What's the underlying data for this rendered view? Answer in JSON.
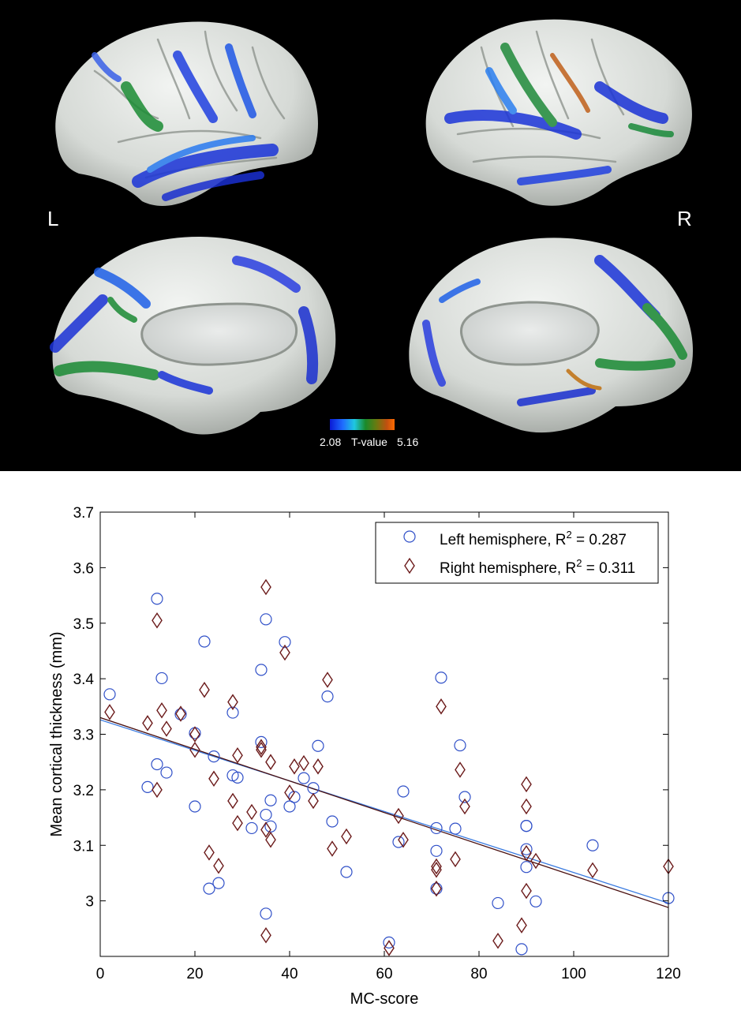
{
  "brain": {
    "left_label": "L",
    "right_label": "R",
    "colorbar": {
      "min_label": "2.08",
      "title": "T-value",
      "max_label": "5.16",
      "colors": [
        "#0a1ad6",
        "#1f6cff",
        "#1fc8e0",
        "#1a8a2a",
        "#6a7a10",
        "#c05010",
        "#ff6a00"
      ]
    }
  },
  "chart_data": {
    "type": "scatter",
    "xlabel": "MC-score",
    "ylabel": "Mean cortical thickness (mm)",
    "xlim": [
      0,
      120
    ],
    "ylim": [
      2.9,
      3.7
    ],
    "xticks": [
      "0",
      "20",
      "40",
      "60",
      "80",
      "100",
      "120"
    ],
    "yticks": [
      "3",
      "3.1",
      "3.2",
      "3.3",
      "3.4",
      "3.5",
      "3.6",
      "3.7"
    ],
    "ytick_values": [
      3.0,
      3.1,
      3.2,
      3.3,
      3.4,
      3.5,
      3.6,
      3.7
    ],
    "legend_position": "top-right",
    "series": [
      {
        "name": "Left hemisphere, R",
        "r2_text": " = 0.287",
        "marker": "circle",
        "color": "#3050c8",
        "fit_color": "#3a7be0",
        "fit": [
          [
            0,
            3.326
          ],
          [
            120,
            2.996
          ]
        ],
        "points": [
          [
            2,
            3.372
          ],
          [
            10,
            3.205
          ],
          [
            12,
            3.544
          ],
          [
            12,
            3.246
          ],
          [
            13,
            3.401
          ],
          [
            14,
            3.231
          ],
          [
            17,
            3.336
          ],
          [
            20,
            3.302
          ],
          [
            20,
            3.17
          ],
          [
            22,
            3.467
          ],
          [
            23,
            3.022
          ],
          [
            24,
            3.26
          ],
          [
            25,
            3.032
          ],
          [
            28,
            3.339
          ],
          [
            28,
            3.226
          ],
          [
            29,
            3.222
          ],
          [
            32,
            3.131
          ],
          [
            34,
            3.416
          ],
          [
            34,
            3.286
          ],
          [
            35,
            3.507
          ],
          [
            35,
            3.155
          ],
          [
            35,
            2.977
          ],
          [
            36,
            3.181
          ],
          [
            36,
            3.134
          ],
          [
            39,
            3.466
          ],
          [
            40,
            3.17
          ],
          [
            41,
            3.187
          ],
          [
            43,
            3.221
          ],
          [
            45,
            3.203
          ],
          [
            46,
            3.279
          ],
          [
            48,
            3.368
          ],
          [
            49,
            3.143
          ],
          [
            52,
            3.052
          ],
          [
            61,
            2.925
          ],
          [
            63,
            3.106
          ],
          [
            64,
            3.197
          ],
          [
            71,
            3.131
          ],
          [
            71,
            3.09
          ],
          [
            71,
            3.022
          ],
          [
            72,
            3.402
          ],
          [
            75,
            3.13
          ],
          [
            76,
            3.28
          ],
          [
            77,
            3.187
          ],
          [
            84,
            2.996
          ],
          [
            89,
            2.913
          ],
          [
            90,
            3.135
          ],
          [
            90,
            3.135
          ],
          [
            90,
            3.093
          ],
          [
            90,
            3.061
          ],
          [
            92,
            2.999
          ],
          [
            104,
            3.1
          ],
          [
            120,
            3.005
          ]
        ]
      },
      {
        "name": "Right hemisphere, R",
        "r2_text": " = 0.311",
        "marker": "diamond",
        "color": "#6b1a1a",
        "fit_color": "#4a0f0f",
        "fit": [
          [
            0,
            3.33
          ],
          [
            120,
            2.988
          ]
        ],
        "points": [
          [
            2,
            3.34
          ],
          [
            10,
            3.32
          ],
          [
            12,
            3.505
          ],
          [
            12,
            3.2
          ],
          [
            13,
            3.343
          ],
          [
            14,
            3.31
          ],
          [
            17,
            3.337
          ],
          [
            20,
            3.3
          ],
          [
            20,
            3.272
          ],
          [
            22,
            3.38
          ],
          [
            23,
            3.087
          ],
          [
            24,
            3.22
          ],
          [
            25,
            3.063
          ],
          [
            28,
            3.358
          ],
          [
            28,
            3.18
          ],
          [
            29,
            3.262
          ],
          [
            29,
            3.14
          ],
          [
            32,
            3.16
          ],
          [
            34,
            3.272
          ],
          [
            34,
            3.277
          ],
          [
            35,
            3.565
          ],
          [
            35,
            3.128
          ],
          [
            35,
            2.938
          ],
          [
            36,
            3.25
          ],
          [
            36,
            3.11
          ],
          [
            39,
            3.447
          ],
          [
            40,
            3.195
          ],
          [
            41,
            3.242
          ],
          [
            43,
            3.248
          ],
          [
            45,
            3.18
          ],
          [
            46,
            3.242
          ],
          [
            48,
            3.398
          ],
          [
            49,
            3.094
          ],
          [
            52,
            3.116
          ],
          [
            61,
            2.915
          ],
          [
            63,
            3.153
          ],
          [
            64,
            3.11
          ],
          [
            71,
            3.062
          ],
          [
            71,
            3.056
          ],
          [
            71,
            3.022
          ],
          [
            72,
            3.35
          ],
          [
            75,
            3.075
          ],
          [
            76,
            3.236
          ],
          [
            77,
            3.17
          ],
          [
            84,
            2.928
          ],
          [
            89,
            2.956
          ],
          [
            90,
            3.21
          ],
          [
            90,
            3.17
          ],
          [
            90,
            3.086
          ],
          [
            90,
            3.018
          ],
          [
            92,
            3.072
          ],
          [
            104,
            3.055
          ],
          [
            120,
            3.062
          ]
        ]
      }
    ]
  }
}
